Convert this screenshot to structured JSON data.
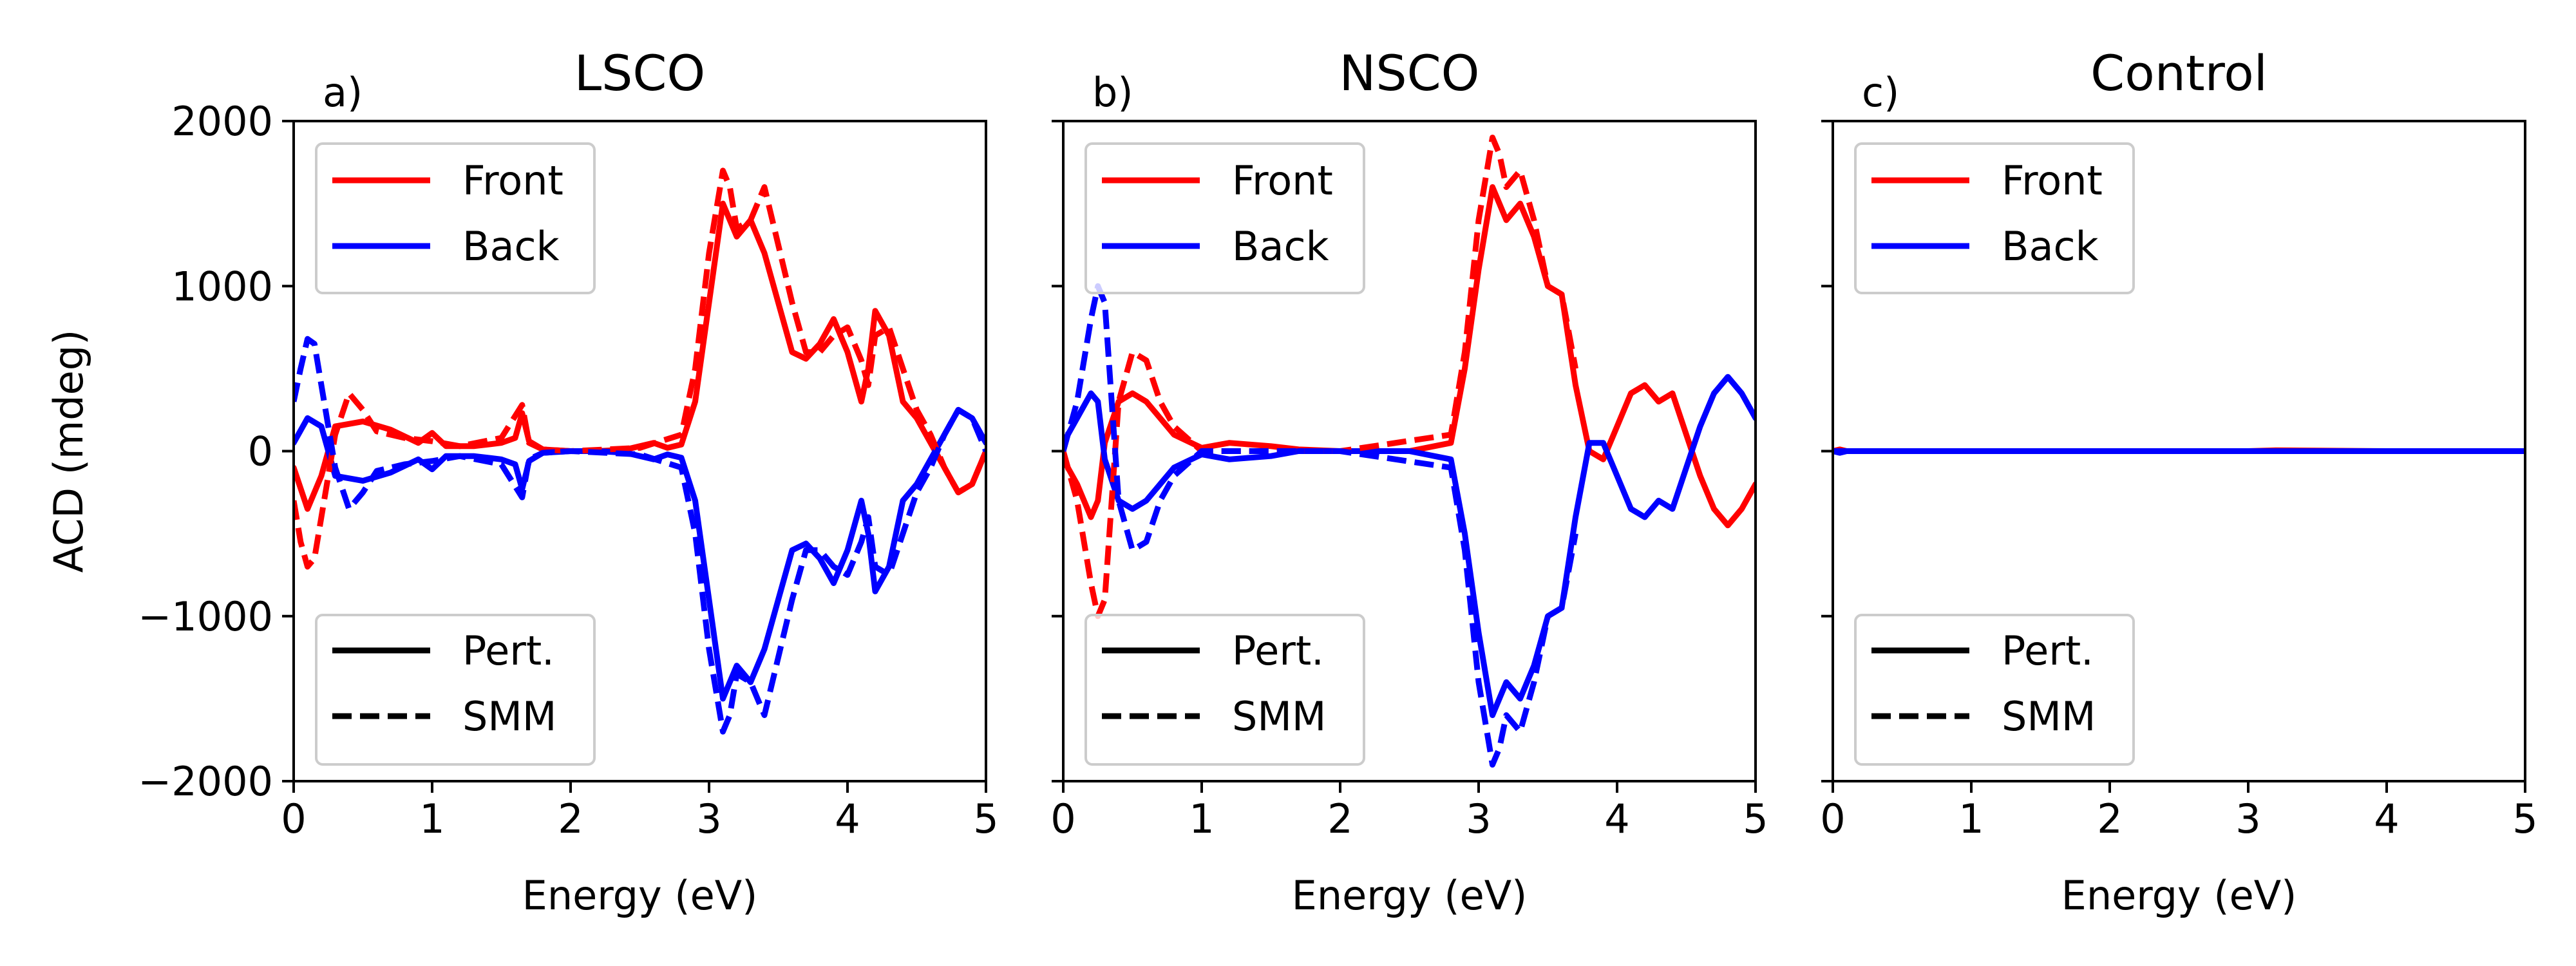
{
  "chart_data": [
    {
      "type": "line",
      "panel_label": "a)",
      "title": "LSCO",
      "xlabel": "Energy (eV)",
      "ylabel": "ACD (mdeg)",
      "xlim": [
        0,
        5
      ],
      "ylim": [
        -2000,
        2000
      ],
      "xticks": [
        0,
        1,
        2,
        3,
        4,
        5
      ],
      "yticks": [
        -2000,
        -1000,
        0,
        1000,
        2000
      ],
      "ytick_labels": [
        "−2000",
        "−1000",
        "0",
        "1000",
        "2000"
      ],
      "show_ytick_labels": true,
      "legend_color": {
        "position": "upper left",
        "entries": [
          {
            "label": "Front",
            "color": "#ff0000"
          },
          {
            "label": "Back",
            "color": "#0000ff"
          }
        ]
      },
      "legend_style": {
        "position": "lower left",
        "entries": [
          {
            "label": "Pert.",
            "style": "solid"
          },
          {
            "label": "SMM",
            "style": "dashed"
          }
        ]
      },
      "series": [
        {
          "name": "Front",
          "method": "Pert.",
          "color": "#ff0000",
          "dash": "solid",
          "x": [
            0,
            0.1,
            0.2,
            0.3,
            0.5,
            0.7,
            0.9,
            1.0,
            1.1,
            1.3,
            1.5,
            1.6,
            1.65,
            1.7,
            1.8,
            2.0,
            2.2,
            2.4,
            2.6,
            2.7,
            2.8,
            2.9,
            3.0,
            3.1,
            3.2,
            3.3,
            3.4,
            3.5,
            3.6,
            3.7,
            3.8,
            3.9,
            4.0,
            4.1,
            4.15,
            4.2,
            4.3,
            4.4,
            4.5,
            4.6,
            4.7,
            4.8,
            4.9,
            5.0
          ],
          "y": [
            -100,
            -350,
            -150,
            150,
            180,
            130,
            50,
            110,
            30,
            30,
            50,
            80,
            230,
            60,
            10,
            0,
            0,
            10,
            50,
            20,
            40,
            300,
            900,
            1500,
            1300,
            1400,
            1200,
            900,
            600,
            560,
            650,
            800,
            600,
            300,
            500,
            850,
            700,
            300,
            200,
            50,
            -100,
            -250,
            -200,
            0
          ]
        },
        {
          "name": "Back",
          "method": "Pert.",
          "color": "#0000ff",
          "dash": "solid",
          "x": [
            0,
            0.1,
            0.2,
            0.3,
            0.5,
            0.7,
            0.9,
            1.0,
            1.1,
            1.3,
            1.5,
            1.6,
            1.65,
            1.7,
            1.8,
            2.0,
            2.2,
            2.4,
            2.6,
            2.7,
            2.8,
            2.9,
            3.0,
            3.1,
            3.2,
            3.3,
            3.4,
            3.5,
            3.6,
            3.7,
            3.8,
            3.9,
            4.0,
            4.1,
            4.15,
            4.2,
            4.3,
            4.4,
            4.5,
            4.6,
            4.7,
            4.8,
            4.9,
            5.0
          ],
          "y": [
            50,
            200,
            150,
            -150,
            -180,
            -130,
            -50,
            -110,
            -30,
            -30,
            -50,
            -80,
            -230,
            -60,
            -10,
            0,
            0,
            -10,
            -50,
            -20,
            -40,
            -300,
            -900,
            -1500,
            -1300,
            -1400,
            -1200,
            -900,
            -600,
            -560,
            -650,
            -800,
            -600,
            -300,
            -500,
            -850,
            -700,
            -300,
            -200,
            -50,
            100,
            250,
            200,
            50
          ]
        },
        {
          "name": "Front",
          "method": "SMM",
          "color": "#ff0000",
          "dash": "dashed",
          "x": [
            0,
            0.05,
            0.1,
            0.15,
            0.2,
            0.3,
            0.4,
            0.5,
            0.6,
            0.8,
            1.0,
            1.2,
            1.5,
            1.65,
            1.7,
            1.8,
            2.0,
            2.5,
            2.8,
            2.9,
            3.0,
            3.1,
            3.15,
            3.2,
            3.3,
            3.4,
            3.5,
            3.6,
            3.7,
            3.8,
            3.9,
            4.0,
            4.1,
            4.15,
            4.2,
            4.3,
            4.4,
            4.5,
            4.6,
            4.7,
            4.8,
            4.9,
            5.0
          ],
          "y": [
            -300,
            -550,
            -700,
            -650,
            -400,
            100,
            350,
            250,
            120,
            80,
            60,
            30,
            80,
            280,
            50,
            10,
            0,
            20,
            100,
            500,
            1200,
            1700,
            1600,
            1350,
            1400,
            1600,
            1250,
            900,
            600,
            600,
            700,
            750,
            550,
            400,
            700,
            750,
            500,
            250,
            100,
            -100,
            -250,
            -200,
            0
          ]
        },
        {
          "name": "Back",
          "method": "SMM",
          "color": "#0000ff",
          "dash": "dashed",
          "x": [
            0,
            0.05,
            0.1,
            0.15,
            0.2,
            0.3,
            0.4,
            0.5,
            0.6,
            0.8,
            1.0,
            1.2,
            1.5,
            1.65,
            1.7,
            1.8,
            2.0,
            2.5,
            2.8,
            2.9,
            3.0,
            3.1,
            3.15,
            3.2,
            3.3,
            3.4,
            3.5,
            3.6,
            3.7,
            3.8,
            3.9,
            4.0,
            4.1,
            4.15,
            4.2,
            4.3,
            4.4,
            4.5,
            4.6,
            4.7,
            4.8,
            4.9,
            5.0
          ],
          "y": [
            300,
            500,
            680,
            650,
            400,
            -100,
            -350,
            -250,
            -120,
            -80,
            -60,
            -30,
            -80,
            -280,
            -50,
            -10,
            0,
            -20,
            -100,
            -500,
            -1200,
            -1700,
            -1600,
            -1350,
            -1400,
            -1600,
            -1250,
            -900,
            -600,
            -600,
            -700,
            -750,
            -550,
            -400,
            -700,
            -750,
            -500,
            -250,
            -100,
            100,
            250,
            200,
            0
          ]
        }
      ]
    },
    {
      "type": "line",
      "panel_label": "b)",
      "title": "NSCO",
      "xlabel": "Energy (eV)",
      "ylabel": "",
      "xlim": [
        0,
        5
      ],
      "ylim": [
        -2000,
        2000
      ],
      "xticks": [
        0,
        1,
        2,
        3,
        4,
        5
      ],
      "yticks": [
        -2000,
        -1000,
        0,
        1000,
        2000
      ],
      "ytick_labels": [],
      "show_ytick_labels": false,
      "legend_color": {
        "position": "upper left",
        "entries": [
          {
            "label": "Front",
            "color": "#ff0000"
          },
          {
            "label": "Back",
            "color": "#0000ff"
          }
        ]
      },
      "legend_style": {
        "position": "lower left",
        "entries": [
          {
            "label": "Pert.",
            "style": "solid"
          },
          {
            "label": "SMM",
            "style": "dashed"
          }
        ]
      },
      "series": [
        {
          "name": "Front",
          "method": "Pert.",
          "color": "#ff0000",
          "dash": "solid",
          "x": [
            0,
            0.1,
            0.2,
            0.25,
            0.3,
            0.4,
            0.5,
            0.6,
            0.7,
            0.8,
            1.0,
            1.2,
            1.5,
            1.7,
            2.0,
            2.5,
            2.8,
            2.9,
            3.0,
            3.1,
            3.2,
            3.3,
            3.4,
            3.5,
            3.6,
            3.7,
            3.8,
            3.9,
            4.0,
            4.1,
            4.2,
            4.3,
            4.4,
            4.5,
            4.6,
            4.7,
            4.8,
            4.9,
            5.0
          ],
          "y": [
            -50,
            -200,
            -400,
            -300,
            50,
            300,
            350,
            300,
            200,
            100,
            20,
            50,
            30,
            10,
            0,
            0,
            50,
            500,
            1100,
            1600,
            1400,
            1500,
            1300,
            1000,
            950,
            400,
            0,
            -50,
            150,
            350,
            400,
            300,
            350,
            100,
            -150,
            -350,
            -450,
            -350,
            -200
          ]
        },
        {
          "name": "Back",
          "method": "Pert.",
          "color": "#0000ff",
          "dash": "solid",
          "x": [
            0,
            0.1,
            0.2,
            0.25,
            0.3,
            0.4,
            0.5,
            0.6,
            0.7,
            0.8,
            1.0,
            1.2,
            1.5,
            1.7,
            2.0,
            2.5,
            2.8,
            2.9,
            3.0,
            3.1,
            3.2,
            3.3,
            3.4,
            3.5,
            3.6,
            3.7,
            3.8,
            3.9,
            4.0,
            4.1,
            4.2,
            4.3,
            4.4,
            4.5,
            4.6,
            4.7,
            4.8,
            4.9,
            5.0
          ],
          "y": [
            50,
            200,
            350,
            300,
            -50,
            -300,
            -350,
            -300,
            -200,
            -100,
            -20,
            -50,
            -30,
            0,
            0,
            0,
            -50,
            -500,
            -1100,
            -1600,
            -1400,
            -1500,
            -1300,
            -1000,
            -950,
            -400,
            50,
            50,
            -150,
            -350,
            -400,
            -300,
            -350,
            -100,
            150,
            350,
            450,
            350,
            200
          ]
        },
        {
          "name": "Front",
          "method": "SMM",
          "color": "#ff0000",
          "dash": "dashed",
          "x": [
            0,
            0.1,
            0.2,
            0.25,
            0.3,
            0.4,
            0.5,
            0.6,
            0.7,
            0.8,
            1.0,
            1.5,
            2.0,
            2.8,
            2.9,
            3.0,
            3.1,
            3.15,
            3.2,
            3.3,
            3.4,
            3.5,
            3.6,
            3.7
          ],
          "y": [
            0,
            -300,
            -800,
            -1000,
            -900,
            300,
            600,
            550,
            300,
            150,
            0,
            0,
            0,
            100,
            600,
            1400,
            1900,
            1800,
            1600,
            1700,
            1400,
            1000,
            950,
            500
          ]
        },
        {
          "name": "Back",
          "method": "SMM",
          "color": "#0000ff",
          "dash": "dashed",
          "x": [
            0,
            0.1,
            0.2,
            0.25,
            0.3,
            0.4,
            0.5,
            0.6,
            0.7,
            0.8,
            1.0,
            1.5,
            2.0,
            2.8,
            2.9,
            3.0,
            3.1,
            3.15,
            3.2,
            3.3,
            3.4,
            3.5,
            3.6,
            3.7
          ],
          "y": [
            0,
            300,
            800,
            1000,
            900,
            -300,
            -600,
            -550,
            -300,
            -150,
            0,
            0,
            0,
            -100,
            -600,
            -1400,
            -1900,
            -1800,
            -1600,
            -1700,
            -1400,
            -1000,
            -950,
            -500
          ]
        }
      ]
    },
    {
      "type": "line",
      "panel_label": "c)",
      "title": "Control",
      "xlabel": "Energy (eV)",
      "ylabel": "",
      "xlim": [
        0,
        5
      ],
      "ylim": [
        -2000,
        2000
      ],
      "xticks": [
        0,
        1,
        2,
        3,
        4,
        5
      ],
      "yticks": [
        -2000,
        -1000,
        0,
        1000,
        2000
      ],
      "ytick_labels": [],
      "show_ytick_labels": false,
      "legend_color": {
        "position": "upper left",
        "entries": [
          {
            "label": "Front",
            "color": "#ff0000"
          },
          {
            "label": "Back",
            "color": "#0000ff"
          }
        ]
      },
      "legend_style": {
        "position": "lower left",
        "entries": [
          {
            "label": "Pert.",
            "style": "solid"
          },
          {
            "label": "SMM",
            "style": "dashed"
          }
        ]
      },
      "series": [
        {
          "name": "Front",
          "method": "Pert.",
          "color": "#ff0000",
          "dash": "solid",
          "x": [
            0,
            0.05,
            0.1,
            1,
            2,
            3,
            3.2,
            4,
            5
          ],
          "y": [
            0,
            10,
            0,
            0,
            0,
            0,
            5,
            0,
            0
          ]
        },
        {
          "name": "Back",
          "method": "Pert.",
          "color": "#0000ff",
          "dash": "solid",
          "x": [
            0,
            0.05,
            0.1,
            1,
            2,
            3,
            4,
            5
          ],
          "y": [
            0,
            -10,
            0,
            0,
            0,
            0,
            0,
            0
          ]
        },
        {
          "name": "Front",
          "method": "SMM",
          "color": "#ff0000",
          "dash": "dashed",
          "x": [
            0,
            1,
            2,
            3,
            4,
            5
          ],
          "y": [
            0,
            0,
            0,
            0,
            0,
            0
          ]
        },
        {
          "name": "Back",
          "method": "SMM",
          "color": "#0000ff",
          "dash": "dashed",
          "x": [
            0,
            1,
            2,
            3,
            4,
            5
          ],
          "y": [
            0,
            0,
            0,
            0,
            0,
            0
          ]
        }
      ]
    }
  ]
}
